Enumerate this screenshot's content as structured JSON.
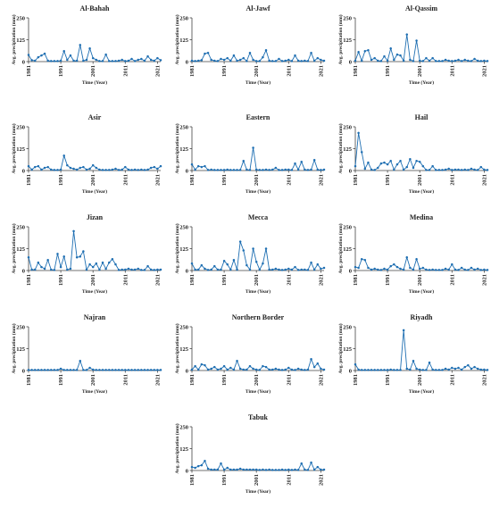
{
  "figure": {
    "colors": {
      "series": "#1f6fb2",
      "axis": "#444444",
      "text": "#222222"
    }
  },
  "chart_data": [
    {
      "type": "line",
      "title": "Al-Bahah",
      "xlabel": "Time (Year)",
      "ylabel": "Avg. precipitation (mm)",
      "xlim": [
        1981,
        2022
      ],
      "ylim": [
        0,
        250
      ],
      "yticks": [
        0,
        125,
        250
      ],
      "xticks": [
        1981,
        1991,
        2001,
        2011,
        2021
      ],
      "x": [
        1981,
        1982,
        1983,
        1984,
        1985,
        1986,
        1987,
        1988,
        1989,
        1990,
        1991,
        1992,
        1993,
        1994,
        1995,
        1996,
        1997,
        1998,
        1999,
        2000,
        2001,
        2002,
        2003,
        2004,
        2005,
        2006,
        2007,
        2008,
        2009,
        2010,
        2011,
        2012,
        2013,
        2014,
        2015,
        2016,
        2017,
        2018,
        2019,
        2020,
        2021,
        2022
      ],
      "y": [
        38,
        8,
        5,
        25,
        35,
        45,
        5,
        3,
        3,
        3,
        5,
        60,
        10,
        35,
        5,
        5,
        95,
        5,
        10,
        75,
        20,
        10,
        3,
        3,
        40,
        3,
        3,
        3,
        5,
        10,
        3,
        5,
        15,
        3,
        10,
        15,
        5,
        30,
        10,
        5,
        20,
        8
      ]
    },
    {
      "type": "line",
      "title": "Al-Jawf",
      "xlabel": "Time (Year)",
      "ylabel": "Avg. precipitation (mm)",
      "xlim": [
        1981,
        2022
      ],
      "ylim": [
        0,
        250
      ],
      "yticks": [
        0,
        125,
        250
      ],
      "xticks": [
        1981,
        1991,
        2001,
        2011,
        2021
      ],
      "x": [
        1981,
        1982,
        1983,
        1984,
        1985,
        1986,
        1987,
        1988,
        1989,
        1990,
        1991,
        1992,
        1993,
        1994,
        1995,
        1996,
        1997,
        1998,
        1999,
        2000,
        2001,
        2002,
        2003,
        2004,
        2005,
        2006,
        2007,
        2008,
        2009,
        2010,
        2011,
        2012,
        2013,
        2014,
        2015,
        2016,
        2017,
        2018,
        2019,
        2020,
        2021,
        2022
      ],
      "y": [
        5,
        3,
        5,
        8,
        45,
        50,
        10,
        5,
        3,
        15,
        10,
        20,
        5,
        35,
        5,
        10,
        20,
        3,
        50,
        10,
        3,
        3,
        25,
        65,
        5,
        3,
        3,
        15,
        3,
        5,
        10,
        3,
        35,
        5,
        3,
        5,
        3,
        50,
        5,
        20,
        10,
        5
      ]
    },
    {
      "type": "line",
      "title": "Al-Qassim",
      "xlabel": "Time (Year)",
      "ylabel": "Avg. precipitation (mm)",
      "xlim": [
        1981,
        2022
      ],
      "ylim": [
        0,
        250
      ],
      "yticks": [
        0,
        125,
        250
      ],
      "xticks": [
        1981,
        1991,
        2001,
        2011,
        2021
      ],
      "x": [
        1981,
        1982,
        1983,
        1984,
        1985,
        1986,
        1987,
        1988,
        1989,
        1990,
        1991,
        1992,
        1993,
        1994,
        1995,
        1996,
        1997,
        1998,
        1999,
        2000,
        2001,
        2002,
        2003,
        2004,
        2005,
        2006,
        2007,
        2008,
        2009,
        2010,
        2011,
        2012,
        2013,
        2014,
        2015,
        2016,
        2017,
        2018,
        2019,
        2020,
        2021,
        2022
      ],
      "y": [
        5,
        55,
        5,
        60,
        65,
        10,
        20,
        5,
        3,
        30,
        5,
        75,
        10,
        40,
        35,
        5,
        155,
        10,
        3,
        120,
        5,
        3,
        20,
        5,
        20,
        3,
        3,
        3,
        10,
        5,
        3,
        5,
        10,
        3,
        10,
        5,
        3,
        15,
        5,
        3,
        5,
        3
      ]
    },
    {
      "type": "line",
      "title": "Asir",
      "xlabel": "Time (Year)",
      "ylabel": "Avg. precipitation (mm)",
      "xlim": [
        1981,
        2022
      ],
      "ylim": [
        0,
        250
      ],
      "yticks": [
        0,
        125,
        250
      ],
      "xticks": [
        1981,
        1991,
        2001,
        2011,
        2021
      ],
      "x": [
        1981,
        1982,
        1983,
        1984,
        1985,
        1986,
        1987,
        1988,
        1989,
        1990,
        1991,
        1992,
        1993,
        1994,
        1995,
        1996,
        1997,
        1998,
        1999,
        2000,
        2001,
        2002,
        2003,
        2004,
        2005,
        2006,
        2007,
        2008,
        2009,
        2010,
        2011,
        2012,
        2013,
        2014,
        2015,
        2016,
        2017,
        2018,
        2019,
        2020,
        2021,
        2022
      ],
      "y": [
        25,
        5,
        20,
        25,
        5,
        15,
        20,
        5,
        3,
        3,
        5,
        85,
        30,
        15,
        10,
        5,
        15,
        20,
        5,
        10,
        30,
        15,
        5,
        3,
        3,
        3,
        5,
        10,
        3,
        5,
        20,
        5,
        3,
        5,
        3,
        5,
        3,
        5,
        15,
        20,
        10,
        25
      ]
    },
    {
      "type": "line",
      "title": "Eastern",
      "xlabel": "Time (Year)",
      "ylabel": "Avg. precipitation (mm)",
      "xlim": [
        1981,
        2022
      ],
      "ylim": [
        0,
        250
      ],
      "yticks": [
        0,
        125,
        250
      ],
      "xticks": [
        1981,
        1991,
        2001,
        2011,
        2021
      ],
      "x": [
        1981,
        1982,
        1983,
        1984,
        1985,
        1986,
        1987,
        1988,
        1989,
        1990,
        1991,
        1992,
        1993,
        1994,
        1995,
        1996,
        1997,
        1998,
        1999,
        2000,
        2001,
        2002,
        2003,
        2004,
        2005,
        2006,
        2007,
        2008,
        2009,
        2010,
        2011,
        2012,
        2013,
        2014,
        2015,
        2016,
        2017,
        2018,
        2019,
        2020,
        2021,
        2022
      ],
      "y": [
        35,
        5,
        25,
        20,
        25,
        3,
        5,
        3,
        3,
        3,
        3,
        5,
        3,
        3,
        3,
        3,
        55,
        5,
        3,
        130,
        5,
        3,
        3,
        5,
        3,
        5,
        15,
        3,
        3,
        5,
        5,
        3,
        40,
        5,
        50,
        5,
        3,
        5,
        60,
        5,
        3,
        5
      ]
    },
    {
      "type": "line",
      "title": "Hail",
      "xlabel": "Time (Year)",
      "ylabel": "Avg. precipitation (mm)",
      "xlim": [
        1981,
        2022
      ],
      "ylim": [
        0,
        250
      ],
      "yticks": [
        0,
        125,
        250
      ],
      "xticks": [
        1981,
        1991,
        2001,
        2011,
        2021
      ],
      "x": [
        1981,
        1982,
        1983,
        1984,
        1985,
        1986,
        1987,
        1988,
        1989,
        1990,
        1991,
        1992,
        1993,
        1994,
        1995,
        1996,
        1997,
        1998,
        1999,
        2000,
        2001,
        2002,
        2003,
        2004,
        2005,
        2006,
        2007,
        2008,
        2009,
        2010,
        2011,
        2012,
        2013,
        2014,
        2015,
        2016,
        2017,
        2018,
        2019,
        2020,
        2021,
        2022
      ],
      "y": [
        25,
        215,
        105,
        10,
        45,
        5,
        3,
        15,
        40,
        45,
        35,
        55,
        5,
        35,
        55,
        5,
        20,
        65,
        15,
        55,
        50,
        25,
        3,
        3,
        25,
        3,
        3,
        3,
        5,
        10,
        3,
        5,
        5,
        3,
        5,
        3,
        10,
        5,
        3,
        20,
        5,
        3
      ]
    },
    {
      "type": "line",
      "title": "Jizan",
      "xlabel": "Time (Year)",
      "ylabel": "Avg. precipitation (mm)",
      "xlim": [
        1981,
        2022
      ],
      "ylim": [
        0,
        250
      ],
      "yticks": [
        0,
        125,
        250
      ],
      "xticks": [
        1981,
        1991,
        2001,
        2011,
        2021
      ],
      "x": [
        1981,
        1982,
        1983,
        1984,
        1985,
        1986,
        1987,
        1988,
        1989,
        1990,
        1991,
        1992,
        1993,
        1994,
        1995,
        1996,
        1997,
        1998,
        1999,
        2000,
        2001,
        2002,
        2003,
        2004,
        2005,
        2006,
        2007,
        2008,
        2009,
        2010,
        2011,
        2012,
        2013,
        2014,
        2015,
        2016,
        2017,
        2018,
        2019,
        2020,
        2021,
        2022
      ],
      "y": [
        75,
        5,
        5,
        45,
        20,
        10,
        60,
        5,
        3,
        95,
        20,
        80,
        5,
        10,
        225,
        75,
        80,
        110,
        5,
        35,
        20,
        40,
        5,
        45,
        10,
        45,
        65,
        35,
        3,
        5,
        5,
        10,
        5,
        5,
        10,
        3,
        3,
        25,
        5,
        3,
        5,
        5
      ]
    },
    {
      "type": "line",
      "title": "Mecca",
      "xlabel": "Time (Year)",
      "ylabel": "Avg. precipitation (mm)",
      "xlim": [
        1981,
        2022
      ],
      "ylim": [
        0,
        250
      ],
      "yticks": [
        0,
        125,
        250
      ],
      "xticks": [
        1981,
        1991,
        2001,
        2011,
        2021
      ],
      "x": [
        1981,
        1982,
        1983,
        1984,
        1985,
        1986,
        1987,
        1988,
        1989,
        1990,
        1991,
        1992,
        1993,
        1994,
        1995,
        1996,
        1997,
        1998,
        1999,
        2000,
        2001,
        2002,
        2003,
        2004,
        2005,
        2006,
        2007,
        2008,
        2009,
        2010,
        2011,
        2012,
        2013,
        2014,
        2015,
        2016,
        2017,
        2018,
        2019,
        2020,
        2021,
        2022
      ],
      "y": [
        40,
        5,
        5,
        30,
        10,
        3,
        5,
        25,
        5,
        5,
        55,
        35,
        5,
        60,
        5,
        165,
        115,
        30,
        5,
        125,
        50,
        5,
        40,
        125,
        5,
        5,
        10,
        5,
        3,
        5,
        10,
        5,
        20,
        3,
        5,
        5,
        3,
        45,
        5,
        35,
        10,
        15
      ]
    },
    {
      "type": "line",
      "title": "Medina",
      "xlabel": "Time (Year)",
      "ylabel": "Avg. precipitation (mm)",
      "xlim": [
        1981,
        2022
      ],
      "ylim": [
        0,
        250
      ],
      "yticks": [
        0,
        125,
        250
      ],
      "xticks": [
        1981,
        1991,
        2001,
        2011,
        2021
      ],
      "x": [
        1981,
        1982,
        1983,
        1984,
        1985,
        1986,
        1987,
        1988,
        1989,
        1990,
        1991,
        1992,
        1993,
        1994,
        1995,
        1996,
        1997,
        1998,
        1999,
        2000,
        2001,
        2002,
        2003,
        2004,
        2005,
        2006,
        2007,
        2008,
        2009,
        2010,
        2011,
        2012,
        2013,
        2014,
        2015,
        2016,
        2017,
        2018,
        2019,
        2020,
        2021,
        2022
      ],
      "y": [
        20,
        15,
        65,
        60,
        15,
        5,
        10,
        5,
        3,
        10,
        5,
        25,
        35,
        20,
        10,
        5,
        75,
        15,
        5,
        65,
        10,
        15,
        5,
        3,
        5,
        3,
        3,
        3,
        10,
        5,
        35,
        5,
        3,
        15,
        5,
        3,
        15,
        5,
        10,
        3,
        5,
        3
      ]
    },
    {
      "type": "line",
      "title": "Najran",
      "xlabel": "Time (Year)",
      "ylabel": "Avg. precipitation (mm)",
      "xlim": [
        1981,
        2022
      ],
      "ylim": [
        0,
        250
      ],
      "yticks": [
        0,
        125,
        250
      ],
      "xticks": [
        1981,
        1991,
        2001,
        2011,
        2021
      ],
      "x": [
        1981,
        1982,
        1983,
        1984,
        1985,
        1986,
        1987,
        1988,
        1989,
        1990,
        1991,
        1992,
        1993,
        1994,
        1995,
        1996,
        1997,
        1998,
        1999,
        2000,
        2001,
        2002,
        2003,
        2004,
        2005,
        2006,
        2007,
        2008,
        2009,
        2010,
        2011,
        2012,
        2013,
        2014,
        2015,
        2016,
        2017,
        2018,
        2019,
        2020,
        2021,
        2022
      ],
      "y": [
        3,
        3,
        3,
        3,
        3,
        3,
        3,
        3,
        3,
        3,
        10,
        3,
        3,
        3,
        3,
        3,
        55,
        3,
        3,
        15,
        5,
        3,
        3,
        3,
        3,
        3,
        3,
        3,
        3,
        3,
        3,
        3,
        3,
        3,
        3,
        3,
        3,
        3,
        3,
        3,
        3,
        3
      ]
    },
    {
      "type": "line",
      "title": "Northern Border",
      "xlabel": "Time (Year)",
      "ylabel": "Avg. precipitation (mm)",
      "xlim": [
        1981,
        2022
      ],
      "ylim": [
        0,
        250
      ],
      "yticks": [
        0,
        125,
        250
      ],
      "xticks": [
        1981,
        1991,
        2001,
        2011,
        2021
      ],
      "x": [
        1981,
        1982,
        1983,
        1984,
        1985,
        1986,
        1987,
        1988,
        1989,
        1990,
        1991,
        1992,
        1993,
        1994,
        1995,
        1996,
        1997,
        1998,
        1999,
        2000,
        2001,
        2002,
        2003,
        2004,
        2005,
        2006,
        2007,
        2008,
        2009,
        2010,
        2011,
        2012,
        2013,
        2014,
        2015,
        2016,
        2017,
        2018,
        2019,
        2020,
        2021,
        2022
      ],
      "y": [
        5,
        25,
        5,
        35,
        30,
        5,
        10,
        20,
        5,
        10,
        25,
        5,
        15,
        5,
        55,
        10,
        5,
        5,
        25,
        10,
        5,
        3,
        25,
        20,
        5,
        5,
        10,
        5,
        3,
        5,
        15,
        5,
        3,
        10,
        5,
        3,
        5,
        65,
        20,
        40,
        10,
        5
      ]
    },
    {
      "type": "line",
      "title": "Riyadh",
      "xlabel": "Time (Year)",
      "ylabel": "Avg. precipitation (mm)",
      "xlim": [
        1981,
        2022
      ],
      "ylim": [
        0,
        250
      ],
      "yticks": [
        0,
        125,
        250
      ],
      "xticks": [
        1981,
        1991,
        2001,
        2011,
        2021
      ],
      "x": [
        1981,
        1982,
        1983,
        1984,
        1985,
        1986,
        1987,
        1988,
        1989,
        1990,
        1991,
        1992,
        1993,
        1994,
        1995,
        1996,
        1997,
        1998,
        1999,
        2000,
        2001,
        2002,
        2003,
        2004,
        2005,
        2006,
        2007,
        2008,
        2009,
        2010,
        2011,
        2012,
        2013,
        2014,
        2015,
        2016,
        2017,
        2018,
        2019,
        2020,
        2021,
        2022
      ],
      "y": [
        35,
        5,
        3,
        3,
        3,
        3,
        3,
        3,
        3,
        3,
        3,
        5,
        3,
        3,
        3,
        230,
        10,
        5,
        55,
        10,
        5,
        3,
        3,
        45,
        5,
        3,
        3,
        3,
        10,
        5,
        15,
        10,
        15,
        5,
        20,
        30,
        10,
        20,
        10,
        5,
        5,
        3
      ]
    },
    {
      "type": "line",
      "title": "Tabuk",
      "xlabel": "Time (Year)",
      "ylabel": "Avg. precipitation (mm)",
      "xlim": [
        1981,
        2022
      ],
      "ylim": [
        0,
        250
      ],
      "yticks": [
        0,
        125,
        250
      ],
      "xticks": [
        1981,
        1991,
        2001,
        2011,
        2021
      ],
      "x": [
        1981,
        1982,
        1983,
        1984,
        1985,
        1986,
        1987,
        1988,
        1989,
        1990,
        1991,
        1992,
        1993,
        1994,
        1995,
        1996,
        1997,
        1998,
        1999,
        2000,
        2001,
        2002,
        2003,
        2004,
        2005,
        2006,
        2007,
        2008,
        2009,
        2010,
        2011,
        2012,
        2013,
        2014,
        2015,
        2016,
        2017,
        2018,
        2019,
        2020,
        2021,
        2022
      ],
      "y": [
        20,
        15,
        25,
        30,
        55,
        10,
        5,
        5,
        5,
        40,
        5,
        15,
        5,
        5,
        5,
        10,
        5,
        5,
        5,
        5,
        5,
        3,
        5,
        3,
        5,
        3,
        3,
        3,
        5,
        3,
        5,
        3,
        5,
        3,
        40,
        5,
        3,
        45,
        5,
        20,
        5,
        5
      ]
    }
  ]
}
